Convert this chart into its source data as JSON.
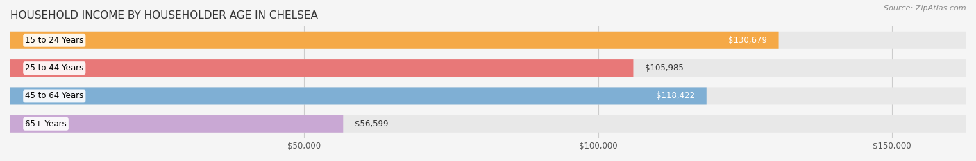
{
  "title": "HOUSEHOLD INCOME BY HOUSEHOLDER AGE IN CHELSEA",
  "source": "Source: ZipAtlas.com",
  "categories": [
    "15 to 24 Years",
    "25 to 44 Years",
    "45 to 64 Years",
    "65+ Years"
  ],
  "values": [
    130679,
    105985,
    118422,
    56599
  ],
  "bar_colors": [
    "#f5a947",
    "#e87878",
    "#7fafd4",
    "#c9a8d4"
  ],
  "label_colors": [
    "#ffffff",
    "#555555",
    "#ffffff",
    "#555555"
  ],
  "value_inside": [
    true,
    false,
    true,
    false
  ],
  "xlim": [
    0,
    162500
  ],
  "xticks": [
    50000,
    100000,
    150000
  ],
  "xtick_labels": [
    "$50,000",
    "$100,000",
    "$150,000"
  ],
  "background_color": "#f5f5f5",
  "bar_background_color": "#e8e8e8",
  "bar_height": 0.62,
  "figure_width": 14.06,
  "figure_height": 2.33,
  "title_fontsize": 11,
  "source_fontsize": 8,
  "label_fontsize": 8.5,
  "value_fontsize": 8.5,
  "tick_fontsize": 8.5
}
